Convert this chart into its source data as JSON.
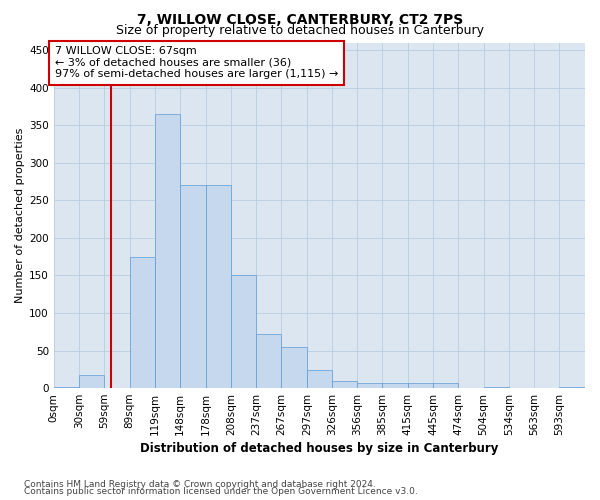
{
  "title": "7, WILLOW CLOSE, CANTERBURY, CT2 7PS",
  "subtitle": "Size of property relative to detached houses in Canterbury",
  "xlabel": "Distribution of detached houses by size in Canterbury",
  "ylabel": "Number of detached properties",
  "footnote1": "Contains HM Land Registry data © Crown copyright and database right 2024.",
  "footnote2": "Contains public sector information licensed under the Open Government Licence v3.0.",
  "annotation_title": "7 WILLOW CLOSE: 67sqm",
  "annotation_line1": "← 3% of detached houses are smaller (36)",
  "annotation_line2": "97% of semi-detached houses are larger (1,115) →",
  "property_size": 67,
  "bins": [
    0,
    30,
    59,
    89,
    119,
    148,
    178,
    208,
    237,
    267,
    297,
    326,
    356,
    385,
    415,
    445,
    474,
    504,
    534,
    563,
    593
  ],
  "bin_labels": [
    "0sqm",
    "30sqm",
    "59sqm",
    "89sqm",
    "119sqm",
    "148sqm",
    "178sqm",
    "208sqm",
    "237sqm",
    "267sqm",
    "297sqm",
    "326sqm",
    "356sqm",
    "385sqm",
    "415sqm",
    "445sqm",
    "474sqm",
    "504sqm",
    "534sqm",
    "563sqm",
    "593sqm"
  ],
  "values": [
    2,
    18,
    0,
    175,
    365,
    270,
    270,
    150,
    72,
    55,
    24,
    10,
    7,
    7,
    7,
    7,
    0,
    2,
    0,
    0,
    2
  ],
  "bar_color": "#c5d8ed",
  "bar_edge_color": "#5b9bd5",
  "vline_color": "#cc0000",
  "vline_x": 67,
  "annotation_box_color": "#cc0000",
  "annotation_fill": "#ffffff",
  "plot_bg_color": "#dce6f0",
  "fig_bg_color": "#ffffff",
  "grid_color": "#b8cde0",
  "ylim": [
    0,
    460
  ],
  "yticks": [
    0,
    50,
    100,
    150,
    200,
    250,
    300,
    350,
    400,
    450
  ],
  "title_fontsize": 10,
  "subtitle_fontsize": 9,
  "xlabel_fontsize": 8.5,
  "ylabel_fontsize": 8,
  "tick_fontsize": 7.5,
  "annotation_fontsize": 8,
  "footnote_fontsize": 6.5
}
